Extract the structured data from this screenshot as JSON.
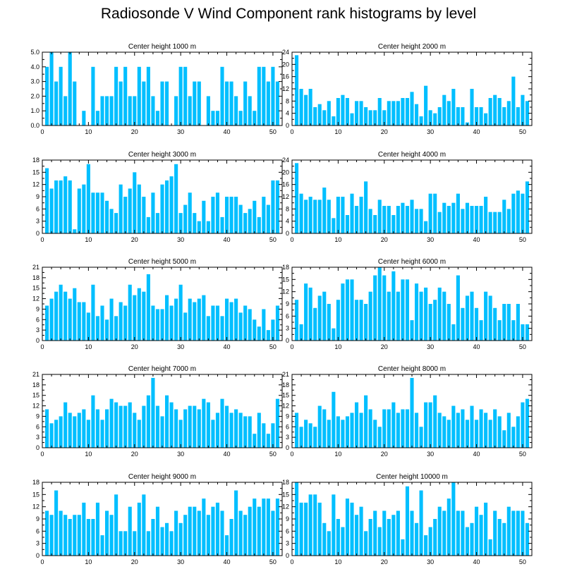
{
  "title": "Radiosonde V Wind Component rank histograms by level",
  "colors": {
    "bar": "#00bfff",
    "axis": "#000000",
    "background": "#ffffff"
  },
  "chart_data": [
    {
      "type": "bar",
      "title": "Center height 1000 m",
      "xlim": [
        0,
        52
      ],
      "ylim": [
        0,
        5
      ],
      "xticks": [
        0,
        10,
        20,
        30,
        40,
        50
      ],
      "yticks": [
        0,
        1,
        2,
        3,
        4,
        5
      ],
      "ytick_labels": [
        "0.0",
        "1.0",
        "2.0",
        "3.0",
        "4.0",
        "5.0"
      ],
      "categories": [
        1,
        2,
        3,
        4,
        5,
        6,
        7,
        8,
        9,
        10,
        11,
        12,
        13,
        14,
        15,
        16,
        17,
        18,
        19,
        20,
        21,
        22,
        23,
        24,
        25,
        26,
        27,
        28,
        29,
        30,
        31,
        32,
        33,
        34,
        35,
        36,
        37,
        38,
        39,
        40,
        41,
        42,
        43,
        44,
        45,
        46,
        47,
        48,
        49,
        50,
        51
      ],
      "values": [
        4,
        5,
        3,
        4,
        2,
        5,
        3,
        0,
        1,
        0,
        4,
        1,
        2,
        2,
        2,
        4,
        3,
        4,
        2,
        2,
        4,
        3,
        4,
        2,
        1,
        3,
        3,
        0,
        2,
        4,
        4,
        2,
        3,
        3,
        0,
        2,
        1,
        1,
        4,
        3,
        3,
        2,
        1,
        3,
        2,
        1,
        4,
        4,
        3,
        4,
        3
      ]
    },
    {
      "type": "bar",
      "title": "Center height 2000 m",
      "xlim": [
        0,
        52
      ],
      "ylim": [
        0,
        24
      ],
      "xticks": [
        0,
        10,
        20,
        30,
        40,
        50
      ],
      "yticks": [
        0,
        4,
        8,
        12,
        16,
        20,
        24
      ],
      "ytick_labels": [
        "0",
        "4",
        "8",
        "12",
        "16",
        "20",
        "24"
      ],
      "categories": [
        1,
        2,
        3,
        4,
        5,
        6,
        7,
        8,
        9,
        10,
        11,
        12,
        13,
        14,
        15,
        16,
        17,
        18,
        19,
        20,
        21,
        22,
        23,
        24,
        25,
        26,
        27,
        28,
        29,
        30,
        31,
        32,
        33,
        34,
        35,
        36,
        37,
        38,
        39,
        40,
        41,
        42,
        43,
        44,
        45,
        46,
        47,
        48,
        49,
        50,
        51
      ],
      "values": [
        23,
        12,
        10,
        12,
        6,
        7,
        5,
        8,
        3,
        9,
        10,
        9,
        4,
        8,
        8,
        6,
        5,
        5,
        9,
        5,
        8,
        8,
        8,
        9,
        9,
        11,
        7,
        3,
        13,
        5,
        4,
        6,
        10,
        8,
        12,
        6,
        6,
        1,
        12,
        6,
        6,
        4,
        9,
        10,
        9,
        6,
        8,
        16,
        6,
        10,
        8
      ]
    },
    {
      "type": "bar",
      "title": "Center height 3000 m",
      "xlim": [
        0,
        52
      ],
      "ylim": [
        0,
        18
      ],
      "xticks": [
        0,
        10,
        20,
        30,
        40,
        50
      ],
      "yticks": [
        0,
        3,
        6,
        9,
        12,
        15,
        18
      ],
      "ytick_labels": [
        "0",
        "3",
        "6",
        "9",
        "12",
        "15",
        "18"
      ],
      "categories": [
        1,
        2,
        3,
        4,
        5,
        6,
        7,
        8,
        9,
        10,
        11,
        12,
        13,
        14,
        15,
        16,
        17,
        18,
        19,
        20,
        21,
        22,
        23,
        24,
        25,
        26,
        27,
        28,
        29,
        30,
        31,
        32,
        33,
        34,
        35,
        36,
        37,
        38,
        39,
        40,
        41,
        42,
        43,
        44,
        45,
        46,
        47,
        48,
        49,
        50,
        51
      ],
      "values": [
        16,
        11,
        13,
        13,
        14,
        13,
        1,
        11,
        12,
        17,
        10,
        10,
        10,
        8,
        6,
        5,
        12,
        9,
        11,
        15,
        12,
        9,
        4,
        10,
        5,
        12,
        13,
        14,
        17,
        5,
        7,
        10,
        5,
        3,
        8,
        3,
        9,
        10,
        4,
        9,
        9,
        9,
        7,
        5,
        6,
        8,
        4,
        9,
        7,
        13,
        13
      ]
    },
    {
      "type": "bar",
      "title": "Center height 4000 m",
      "xlim": [
        0,
        52
      ],
      "ylim": [
        0,
        24
      ],
      "xticks": [
        0,
        10,
        20,
        30,
        40,
        50
      ],
      "yticks": [
        0,
        4,
        8,
        12,
        16,
        20,
        24
      ],
      "ytick_labels": [
        "0",
        "4",
        "8",
        "12",
        "16",
        "20",
        "24"
      ],
      "categories": [
        1,
        2,
        3,
        4,
        5,
        6,
        7,
        8,
        9,
        10,
        11,
        12,
        13,
        14,
        15,
        16,
        17,
        18,
        19,
        20,
        21,
        22,
        23,
        24,
        25,
        26,
        27,
        28,
        29,
        30,
        31,
        32,
        33,
        34,
        35,
        36,
        37,
        38,
        39,
        40,
        41,
        42,
        43,
        44,
        45,
        46,
        47,
        48,
        49,
        50,
        51
      ],
      "values": [
        23,
        13,
        11,
        12,
        11,
        11,
        15,
        11,
        5,
        12,
        12,
        6,
        13,
        9,
        12,
        17,
        8,
        6,
        11,
        9,
        9,
        6,
        9,
        10,
        9,
        11,
        8,
        8,
        4,
        13,
        13,
        7,
        10,
        9,
        10,
        13,
        8,
        10,
        9,
        9,
        9,
        12,
        7,
        7,
        7,
        11,
        8,
        13,
        14,
        13,
        17
      ]
    },
    {
      "type": "bar",
      "title": "Center height 5000 m",
      "xlim": [
        0,
        52
      ],
      "ylim": [
        0,
        21
      ],
      "xticks": [
        0,
        10,
        20,
        30,
        40,
        50
      ],
      "yticks": [
        0,
        3,
        6,
        9,
        12,
        15,
        18,
        21
      ],
      "ytick_labels": [
        "0",
        "3",
        "6",
        "9",
        "12",
        "15",
        "18",
        "21"
      ],
      "categories": [
        1,
        2,
        3,
        4,
        5,
        6,
        7,
        8,
        9,
        10,
        11,
        12,
        13,
        14,
        15,
        16,
        17,
        18,
        19,
        20,
        21,
        22,
        23,
        24,
        25,
        26,
        27,
        28,
        29,
        30,
        31,
        32,
        33,
        34,
        35,
        36,
        37,
        38,
        39,
        40,
        41,
        42,
        43,
        44,
        45,
        46,
        47,
        48,
        49,
        50,
        51
      ],
      "values": [
        10,
        12,
        14,
        16,
        14,
        12,
        15,
        11,
        11,
        8,
        16,
        7,
        10,
        6,
        12,
        7,
        11,
        10,
        16,
        13,
        15,
        14,
        19,
        10,
        9,
        9,
        13,
        10,
        12,
        16,
        8,
        12,
        11,
        12,
        13,
        7,
        10,
        10,
        7,
        12,
        11,
        12,
        8,
        10,
        9,
        6,
        4,
        9,
        3,
        6,
        10
      ]
    },
    {
      "type": "bar",
      "title": "Center height 6000 m",
      "xlim": [
        0,
        52
      ],
      "ylim": [
        0,
        18
      ],
      "xticks": [
        0,
        10,
        20,
        30,
        40,
        50
      ],
      "yticks": [
        0,
        3,
        6,
        9,
        12,
        15,
        18
      ],
      "ytick_labels": [
        "0",
        "3",
        "6",
        "9",
        "12",
        "15",
        "18"
      ],
      "categories": [
        1,
        2,
        3,
        4,
        5,
        6,
        7,
        8,
        9,
        10,
        11,
        12,
        13,
        14,
        15,
        16,
        17,
        18,
        19,
        20,
        21,
        22,
        23,
        24,
        25,
        26,
        27,
        28,
        29,
        30,
        31,
        32,
        33,
        34,
        35,
        36,
        37,
        38,
        39,
        40,
        41,
        42,
        43,
        44,
        45,
        46,
        47,
        48,
        49,
        50,
        51
      ],
      "values": [
        10,
        4,
        14,
        13,
        8,
        11,
        12,
        9,
        3,
        10,
        14,
        15,
        15,
        10,
        10,
        9,
        12,
        16,
        18,
        16,
        12,
        17,
        12,
        15,
        15,
        5,
        14,
        12,
        13,
        9,
        10,
        13,
        12,
        9,
        4,
        16,
        8,
        11,
        12,
        8,
        5,
        12,
        11,
        8,
        5,
        9,
        9,
        5,
        9,
        4,
        4
      ]
    },
    {
      "type": "bar",
      "title": "Center height 7000 m",
      "xlim": [
        0,
        52
      ],
      "ylim": [
        0,
        21
      ],
      "xticks": [
        0,
        10,
        20,
        30,
        40,
        50
      ],
      "yticks": [
        0,
        3,
        6,
        9,
        12,
        15,
        18,
        21
      ],
      "ytick_labels": [
        "0",
        "3",
        "6",
        "9",
        "12",
        "15",
        "18",
        "21"
      ],
      "categories": [
        1,
        2,
        3,
        4,
        5,
        6,
        7,
        8,
        9,
        10,
        11,
        12,
        13,
        14,
        15,
        16,
        17,
        18,
        19,
        20,
        21,
        22,
        23,
        24,
        25,
        26,
        27,
        28,
        29,
        30,
        31,
        32,
        33,
        34,
        35,
        36,
        37,
        38,
        39,
        40,
        41,
        42,
        43,
        44,
        45,
        46,
        47,
        48,
        49,
        50,
        51
      ],
      "values": [
        11,
        7,
        8,
        9,
        13,
        10,
        9,
        10,
        11,
        8,
        15,
        11,
        8,
        11,
        14,
        13,
        12,
        12,
        13,
        10,
        8,
        12,
        15,
        20,
        12,
        9,
        15,
        13,
        11,
        8,
        11,
        12,
        12,
        11,
        14,
        13,
        8,
        10,
        14,
        12,
        10,
        11,
        10,
        9,
        9,
        4,
        10,
        7,
        4,
        7,
        14
      ]
    },
    {
      "type": "bar",
      "title": "Center height 8000 m",
      "xlim": [
        0,
        52
      ],
      "ylim": [
        0,
        21
      ],
      "xticks": [
        0,
        10,
        20,
        30,
        40,
        50
      ],
      "yticks": [
        0,
        3,
        6,
        9,
        12,
        15,
        18,
        21
      ],
      "ytick_labels": [
        "0",
        "3",
        "6",
        "9",
        "12",
        "15",
        "18",
        "21"
      ],
      "categories": [
        1,
        2,
        3,
        4,
        5,
        6,
        7,
        8,
        9,
        10,
        11,
        12,
        13,
        14,
        15,
        16,
        17,
        18,
        19,
        20,
        21,
        22,
        23,
        24,
        25,
        26,
        27,
        28,
        29,
        30,
        31,
        32,
        33,
        34,
        35,
        36,
        37,
        38,
        39,
        40,
        41,
        42,
        43,
        44,
        45,
        46,
        47,
        48,
        49,
        50,
        51
      ],
      "values": [
        10,
        6,
        8,
        7,
        6,
        12,
        11,
        8,
        16,
        9,
        8,
        9,
        10,
        13,
        10,
        15,
        11,
        8,
        6,
        11,
        11,
        13,
        10,
        11,
        11,
        20,
        10,
        6,
        13,
        13,
        15,
        10,
        9,
        8,
        12,
        10,
        11,
        8,
        12,
        8,
        11,
        10,
        8,
        11,
        9,
        5,
        10,
        6,
        9,
        13,
        14
      ]
    },
    {
      "type": "bar",
      "title": "Center height 9000 m",
      "xlim": [
        0,
        52
      ],
      "ylim": [
        0,
        18
      ],
      "xticks": [
        0,
        10,
        20,
        30,
        40,
        50
      ],
      "yticks": [
        0,
        3,
        6,
        9,
        12,
        15,
        18
      ],
      "ytick_labels": [
        "0",
        "3",
        "6",
        "9",
        "12",
        "15",
        "18"
      ],
      "categories": [
        1,
        2,
        3,
        4,
        5,
        6,
        7,
        8,
        9,
        10,
        11,
        12,
        13,
        14,
        15,
        16,
        17,
        18,
        19,
        20,
        21,
        22,
        23,
        24,
        25,
        26,
        27,
        28,
        29,
        30,
        31,
        32,
        33,
        34,
        35,
        36,
        37,
        38,
        39,
        40,
        41,
        42,
        43,
        44,
        45,
        46,
        47,
        48,
        49,
        50,
        51
      ],
      "values": [
        11,
        10,
        16,
        11,
        10,
        9,
        10,
        10,
        13,
        9,
        9,
        13,
        5,
        11,
        10,
        15,
        6,
        6,
        12,
        6,
        13,
        15,
        6,
        9,
        12,
        7,
        8,
        6,
        11,
        8,
        10,
        12,
        12,
        11,
        14,
        10,
        12,
        13,
        11,
        5,
        9,
        16,
        11,
        10,
        12,
        14,
        12,
        14,
        14,
        11,
        14
      ]
    },
    {
      "type": "bar",
      "title": "Center height 10000 m",
      "xlim": [
        0,
        52
      ],
      "ylim": [
        0,
        18
      ],
      "xticks": [
        0,
        10,
        20,
        30,
        40,
        50
      ],
      "yticks": [
        0,
        3,
        6,
        9,
        12,
        15,
        18
      ],
      "ytick_labels": [
        "0",
        "3",
        "6",
        "9",
        "12",
        "15",
        "18"
      ],
      "categories": [
        1,
        2,
        3,
        4,
        5,
        6,
        7,
        8,
        9,
        10,
        11,
        12,
        13,
        14,
        15,
        16,
        17,
        18,
        19,
        20,
        21,
        22,
        23,
        24,
        25,
        26,
        27,
        28,
        29,
        30,
        31,
        32,
        33,
        34,
        35,
        36,
        37,
        38,
        39,
        40,
        41,
        42,
        43,
        44,
        45,
        46,
        47,
        48,
        49,
        50,
        51
      ],
      "values": [
        18,
        13,
        13,
        15,
        15,
        13,
        8,
        6,
        15,
        9,
        7,
        14,
        13,
        10,
        12,
        6,
        9,
        11,
        7,
        11,
        9,
        10,
        11,
        4,
        17,
        11,
        8,
        16,
        5,
        7,
        9,
        12,
        11,
        14,
        18,
        11,
        11,
        7,
        8,
        12,
        10,
        13,
        4,
        11,
        9,
        8,
        12,
        11,
        11,
        11,
        8
      ]
    }
  ]
}
